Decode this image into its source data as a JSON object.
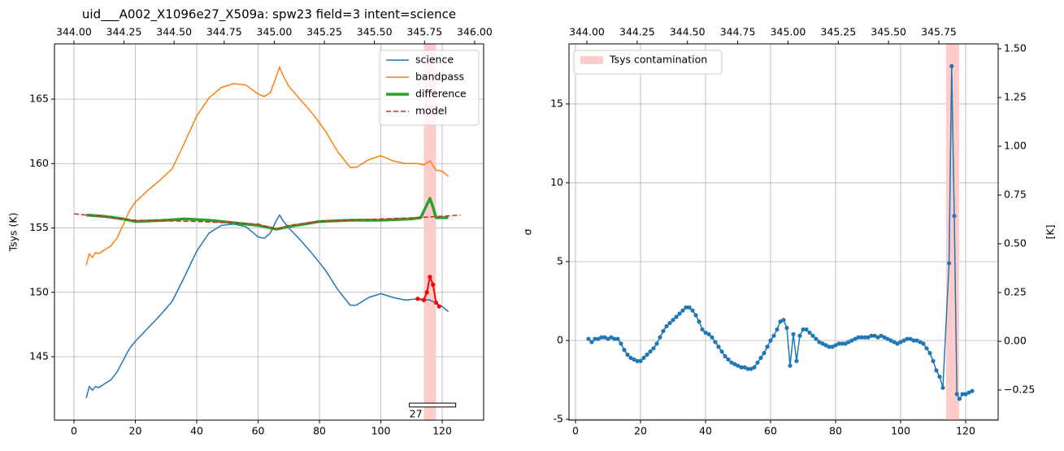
{
  "chart_data": [
    {
      "type": "line",
      "title": "uid___A002_X1096e27_X509a: spw23 field=3 intent=science",
      "ylabel": "Tsys (K)",
      "xlim": [
        -6.36,
        133.5
      ],
      "ylim": [
        140.08,
        169.29
      ],
      "xticks": [
        0,
        20,
        40,
        60,
        80,
        100,
        120
      ],
      "yticks": [
        145,
        150,
        155,
        160,
        165
      ],
      "x2lim": [
        343.903,
        346.045
      ],
      "x2ticks": [
        {
          "value": 344.0,
          "label": "344.00"
        },
        {
          "value": 344.25,
          "label": "344.25"
        },
        {
          "value": 344.5,
          "label": "344.50"
        },
        {
          "value": 344.75,
          "label": "344.75"
        },
        {
          "value": 345.0,
          "label": "345.00"
        },
        {
          "value": 345.25,
          "label": "345.25"
        },
        {
          "value": 345.5,
          "label": "345.50"
        },
        {
          "value": 345.75,
          "label": "345.75"
        },
        {
          "value": 346.0,
          "label": "346.00"
        }
      ],
      "grid": true,
      "legend": "upper right",
      "spans": [
        {
          "x": [
            114,
            118
          ],
          "color": "#ffcccc"
        }
      ],
      "series": [
        {
          "name": "science",
          "color": "#1f77b4",
          "x": [
            4,
            5,
            6,
            7,
            8,
            10,
            12,
            14,
            16,
            18,
            20,
            24,
            28,
            32,
            36,
            40,
            44,
            48,
            52,
            56,
            60,
            62,
            64,
            66,
            67,
            68,
            70,
            74,
            78,
            82,
            86,
            90,
            92,
            96,
            100,
            104,
            108,
            112,
            116,
            120,
            122
          ],
          "values": [
            141.8,
            142.7,
            142.4,
            142.7,
            142.6,
            142.9,
            143.2,
            143.8,
            144.7,
            145.6,
            146.2,
            147.2,
            148.2,
            149.3,
            151.2,
            153.2,
            154.6,
            155.2,
            155.3,
            155.1,
            154.3,
            154.2,
            154.6,
            155.6,
            156.0,
            155.6,
            155.0,
            154.0,
            152.9,
            151.7,
            150.2,
            149.0,
            149.0,
            149.6,
            149.9,
            149.6,
            149.4,
            149.5,
            149.4,
            148.9,
            148.5
          ]
        },
        {
          "name": "bandpass",
          "color": "#ff7f0e",
          "x": [
            4,
            5,
            6,
            7,
            8,
            10,
            12,
            14,
            16,
            18,
            20,
            24,
            28,
            32,
            36,
            40,
            44,
            48,
            52,
            56,
            60,
            62,
            64,
            66,
            67,
            68,
            70,
            74,
            78,
            82,
            86,
            90,
            92,
            96,
            100,
            104,
            108,
            112,
            114,
            116,
            118,
            120,
            122
          ],
          "values": [
            152.1,
            153.0,
            152.7,
            153.1,
            153.0,
            153.3,
            153.6,
            154.2,
            155.2,
            156.3,
            157.0,
            157.9,
            158.7,
            159.6,
            161.6,
            163.7,
            165.1,
            165.9,
            166.2,
            166.1,
            165.4,
            165.2,
            165.5,
            166.8,
            167.5,
            166.9,
            166.0,
            164.9,
            163.8,
            162.5,
            160.9,
            159.7,
            159.7,
            160.3,
            160.6,
            160.2,
            160.0,
            160.0,
            159.9,
            160.2,
            159.5,
            159.4,
            159.0
          ]
        },
        {
          "name": "difference",
          "color": "#2ca02c",
          "width": 3.5,
          "x": [
            4,
            10,
            16,
            20,
            30,
            36,
            44,
            52,
            60,
            66,
            70,
            80,
            90,
            100,
            110,
            113,
            114,
            115,
            116,
            117,
            118,
            122
          ],
          "values": [
            156.0,
            155.9,
            155.7,
            155.5,
            155.6,
            155.7,
            155.6,
            155.4,
            155.2,
            154.9,
            155.1,
            155.5,
            155.6,
            155.6,
            155.7,
            155.8,
            156.3,
            156.8,
            157.3,
            156.6,
            155.8,
            155.8
          ]
        },
        {
          "name": "model",
          "color": "#d62728",
          "dashed": true,
          "x": [
            0,
            20,
            40,
            60,
            66,
            70,
            80,
            100,
            112,
            126
          ],
          "values": [
            156.1,
            155.6,
            155.5,
            155.3,
            154.9,
            155.2,
            155.5,
            155.7,
            155.8,
            156.0
          ]
        },
        {
          "color": "#ff0000",
          "markers": true,
          "width": 2,
          "x": [
            112,
            114,
            115,
            116,
            117,
            118,
            119
          ],
          "values": [
            149.5,
            149.4,
            150.0,
            151.2,
            150.6,
            149.2,
            148.9
          ]
        }
      ],
      "annotations": [
        {
          "text": "27",
          "x": [
            109.3,
            124.4
          ],
          "y": [
            141.1,
            141.4
          ]
        }
      ]
    },
    {
      "type": "line",
      "ylabel": "σ",
      "y2label": "[K]",
      "xlim": [
        -2,
        130
      ],
      "ylim": [
        -5.05,
        18.81
      ],
      "xticks": [
        0,
        20,
        40,
        60,
        80,
        100,
        120
      ],
      "yticks": [
        -5,
        0,
        5,
        10,
        15
      ],
      "y2lim": [
        -0.404,
        1.525
      ],
      "y2ticks": [
        {
          "value": -0.25,
          "label": "−0.25"
        },
        {
          "value": 0.0,
          "label": "0.00"
        },
        {
          "value": 0.25,
          "label": "0.25"
        },
        {
          "value": 0.5,
          "label": "0.50"
        },
        {
          "value": 0.75,
          "label": "0.75"
        },
        {
          "value": 1.0,
          "label": "1.00"
        },
        {
          "value": 1.25,
          "label": "1.25"
        },
        {
          "value": 1.5,
          "label": "1.50"
        }
      ],
      "x2lim": [
        343.911,
        346.045
      ],
      "x2ticks": [
        {
          "value": 344.0,
          "label": "344.00"
        },
        {
          "value": 344.25,
          "label": "344.25"
        },
        {
          "value": 344.5,
          "label": "344.50"
        },
        {
          "value": 344.75,
          "label": "344.75"
        },
        {
          "value": 345.0,
          "label": "345.00"
        },
        {
          "value": 345.25,
          "label": "345.25"
        },
        {
          "value": 345.5,
          "label": "345.50"
        },
        {
          "value": 345.75,
          "label": "345.75"
        }
      ],
      "grid": true,
      "legend": "upper left",
      "spans": [
        {
          "name": "Tsys contamination",
          "x": [
            114,
            118
          ],
          "color": "#ffcccc"
        }
      ],
      "series": [
        {
          "color": "#1f77b4",
          "markers": true,
          "x": [
            4,
            5,
            6,
            7,
            8,
            9,
            10,
            11,
            12,
            13,
            14,
            15,
            16,
            17,
            18,
            19,
            20,
            21,
            22,
            23,
            24,
            25,
            26,
            27,
            28,
            29,
            30,
            31,
            32,
            33,
            34,
            35,
            36,
            37,
            38,
            39,
            40,
            41,
            42,
            43,
            44,
            45,
            46,
            47,
            48,
            49,
            50,
            51,
            52,
            53,
            54,
            55,
            56,
            57,
            58,
            59,
            60,
            61,
            62,
            63,
            64,
            65,
            66,
            67,
            68,
            69,
            70,
            71,
            72,
            73,
            74,
            75,
            76,
            77,
            78,
            79,
            80,
            81,
            82,
            83,
            84,
            85,
            86,
            87,
            88,
            89,
            90,
            91,
            92,
            93,
            94,
            95,
            96,
            97,
            98,
            99,
            100,
            101,
            102,
            103,
            104,
            105,
            106,
            107,
            108,
            109,
            110,
            111,
            112,
            113,
            114.9,
            115.7,
            116.5,
            117.3,
            118.1,
            119,
            120,
            121,
            122
          ],
          "values": [
            0.1,
            -0.1,
            0.1,
            0.1,
            0.2,
            0.2,
            0.1,
            0.2,
            0.1,
            0.1,
            -0.2,
            -0.6,
            -0.9,
            -1.1,
            -1.2,
            -1.3,
            -1.3,
            -1.1,
            -0.9,
            -0.7,
            -0.5,
            -0.2,
            0.2,
            0.6,
            0.9,
            1.1,
            1.3,
            1.5,
            1.7,
            1.9,
            2.1,
            2.1,
            1.9,
            1.6,
            1.2,
            0.7,
            0.5,
            0.4,
            0.2,
            -0.1,
            -0.4,
            -0.7,
            -1.0,
            -1.2,
            -1.4,
            -1.5,
            -1.6,
            -1.7,
            -1.7,
            -1.8,
            -1.8,
            -1.7,
            -1.4,
            -1.1,
            -0.8,
            -0.4,
            0.0,
            0.3,
            0.7,
            1.2,
            1.3,
            0.8,
            -1.6,
            0.4,
            -1.3,
            0.3,
            0.7,
            0.7,
            0.5,
            0.3,
            0.1,
            -0.1,
            -0.2,
            -0.3,
            -0.4,
            -0.4,
            -0.3,
            -0.2,
            -0.2,
            -0.2,
            -0.1,
            0.0,
            0.1,
            0.2,
            0.2,
            0.2,
            0.2,
            0.3,
            0.3,
            0.2,
            0.3,
            0.2,
            0.1,
            0.0,
            -0.1,
            -0.2,
            -0.1,
            0.0,
            0.1,
            0.1,
            0.0,
            0.0,
            -0.1,
            -0.2,
            -0.5,
            -0.8,
            -1.3,
            -1.9,
            -2.3,
            -3.0,
            4.9,
            17.4,
            7.9,
            -3.4,
            -3.7,
            -3.4,
            -3.4,
            -3.3,
            -3.2
          ]
        }
      ]
    }
  ]
}
